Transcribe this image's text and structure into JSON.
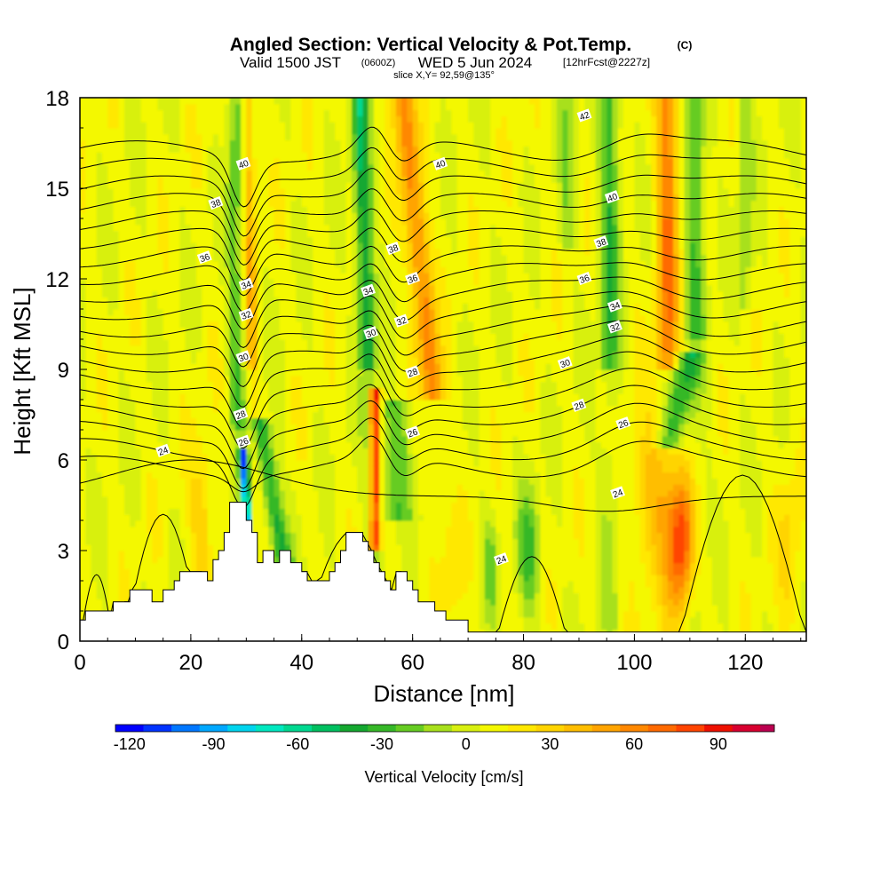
{
  "chart_data": {
    "type": "heatmap",
    "title": "Angled Section: Vertical Velocity & Pot.Temp.",
    "title_suffix": "(C)",
    "subtitle_valid": "Valid 1500 JST",
    "subtitle_utc": "(0600Z)",
    "subtitle_date": "WED 5 Jun 2024",
    "subtitle_fcst": "[12hrFcst@2227z]",
    "subtitle_slice": "slice X,Y= 92,59@135°",
    "xlabel": "Distance [nm]",
    "ylabel": "Height [Kft MSL]",
    "xlim": [
      0,
      131
    ],
    "ylim": [
      0,
      18
    ],
    "x_ticks": [
      0,
      20,
      40,
      60,
      80,
      100,
      120
    ],
    "y_ticks": [
      0,
      3,
      6,
      9,
      12,
      15,
      18
    ],
    "colorbar": {
      "label": "Vertical Velocity [cm/s]",
      "min": -125,
      "max": 110,
      "step": 10,
      "ticks": [
        -120,
        -90,
        -60,
        -30,
        0,
        30,
        60,
        90
      ],
      "colors": [
        "#0000ff",
        "#0033ff",
        "#0077ff",
        "#00a8ff",
        "#00d4ee",
        "#00e8c0",
        "#00d890",
        "#00c060",
        "#14a830",
        "#36b828",
        "#66cc22",
        "#a8e01c",
        "#d8f010",
        "#f4f800",
        "#ffe800",
        "#ffd400",
        "#ffbe00",
        "#ffa400",
        "#ff8800",
        "#ff6a00",
        "#ff4400",
        "#ee1000",
        "#d80030",
        "#bb0050",
        "#8a0070",
        "#5a0080"
      ]
    },
    "terrain_height_kft": [
      [
        0,
        0.7
      ],
      [
        1,
        0.7
      ],
      [
        1,
        1.0
      ],
      [
        6,
        1.0
      ],
      [
        6,
        1.3
      ],
      [
        9,
        1.3
      ],
      [
        9,
        1.7
      ],
      [
        13,
        1.7
      ],
      [
        13,
        1.3
      ],
      [
        15,
        1.3
      ],
      [
        15,
        1.7
      ],
      [
        17,
        1.7
      ],
      [
        17,
        2.0
      ],
      [
        18,
        2.0
      ],
      [
        18,
        2.3
      ],
      [
        23,
        2.3
      ],
      [
        23,
        2.0
      ],
      [
        24,
        2.0
      ],
      [
        24,
        2.7
      ],
      [
        25,
        2.7
      ],
      [
        25,
        3.0
      ],
      [
        26,
        3.0
      ],
      [
        26,
        3.6
      ],
      [
        27,
        3.6
      ],
      [
        27,
        4.6
      ],
      [
        30,
        4.6
      ],
      [
        30,
        4.0
      ],
      [
        31,
        4.0
      ],
      [
        31,
        3.6
      ],
      [
        32,
        3.6
      ],
      [
        32,
        2.6
      ],
      [
        33,
        2.6
      ],
      [
        33,
        3.0
      ],
      [
        35,
        3.0
      ],
      [
        35,
        2.6
      ],
      [
        36,
        2.6
      ],
      [
        36,
        3.0
      ],
      [
        38,
        3.0
      ],
      [
        38,
        2.6
      ],
      [
        40,
        2.6
      ],
      [
        40,
        2.3
      ],
      [
        41,
        2.3
      ],
      [
        41,
        2.0
      ],
      [
        45,
        2.0
      ],
      [
        45,
        2.3
      ],
      [
        46,
        2.3
      ],
      [
        46,
        2.6
      ],
      [
        47,
        2.6
      ],
      [
        47,
        3.0
      ],
      [
        48,
        3.0
      ],
      [
        48,
        3.6
      ],
      [
        51,
        3.6
      ],
      [
        51,
        3.3
      ],
      [
        52,
        3.3
      ],
      [
        52,
        3.0
      ],
      [
        53,
        3.0
      ],
      [
        53,
        2.6
      ],
      [
        54,
        2.6
      ],
      [
        54,
        2.3
      ],
      [
        55,
        2.3
      ],
      [
        55,
        2.0
      ],
      [
        56,
        2.0
      ],
      [
        56,
        1.7
      ],
      [
        57,
        1.7
      ],
      [
        57,
        2.3
      ],
      [
        59,
        2.3
      ],
      [
        59,
        2.0
      ],
      [
        60,
        2.0
      ],
      [
        60,
        1.7
      ],
      [
        61,
        1.7
      ],
      [
        61,
        1.3
      ],
      [
        64,
        1.3
      ],
      [
        64,
        1.0
      ],
      [
        66,
        1.0
      ],
      [
        66,
        0.7
      ],
      [
        70,
        0.7
      ],
      [
        70,
        0.3
      ],
      [
        131,
        0.3
      ]
    ],
    "pot_temp_contour_labels": [
      {
        "x": 29.5,
        "y": 15.8,
        "label": "40"
      },
      {
        "x": 24.5,
        "y": 14.5,
        "label": "38"
      },
      {
        "x": 22.5,
        "y": 12.7,
        "label": "36"
      },
      {
        "x": 30,
        "y": 11.8,
        "label": "34"
      },
      {
        "x": 30,
        "y": 10.8,
        "label": "32"
      },
      {
        "x": 29.5,
        "y": 9.4,
        "label": "30"
      },
      {
        "x": 29,
        "y": 7.5,
        "label": "28"
      },
      {
        "x": 29.5,
        "y": 6.6,
        "label": "26"
      },
      {
        "x": 15,
        "y": 6.3,
        "label": "24"
      },
      {
        "x": 56.5,
        "y": 13.0,
        "label": "38"
      },
      {
        "x": 60,
        "y": 12.0,
        "label": "36"
      },
      {
        "x": 52,
        "y": 11.6,
        "label": "34"
      },
      {
        "x": 58,
        "y": 10.6,
        "label": "32"
      },
      {
        "x": 52.5,
        "y": 10.2,
        "label": "30"
      },
      {
        "x": 60,
        "y": 8.9,
        "label": "28"
      },
      {
        "x": 60,
        "y": 6.9,
        "label": "26"
      },
      {
        "x": 65,
        "y": 15.8,
        "label": "40"
      },
      {
        "x": 91,
        "y": 17.4,
        "label": "42"
      },
      {
        "x": 96,
        "y": 14.7,
        "label": "40"
      },
      {
        "x": 94,
        "y": 13.2,
        "label": "38"
      },
      {
        "x": 91,
        "y": 12.0,
        "label": "36"
      },
      {
        "x": 96.5,
        "y": 11.1,
        "label": "34"
      },
      {
        "x": 96.5,
        "y": 10.4,
        "label": "32"
      },
      {
        "x": 87.5,
        "y": 9.2,
        "label": "30"
      },
      {
        "x": 90,
        "y": 7.8,
        "label": "28"
      },
      {
        "x": 98,
        "y": 7.2,
        "label": "26"
      },
      {
        "x": 97,
        "y": 4.9,
        "label": "24"
      },
      {
        "x": 76,
        "y": 2.7,
        "label": "24"
      }
    ]
  }
}
